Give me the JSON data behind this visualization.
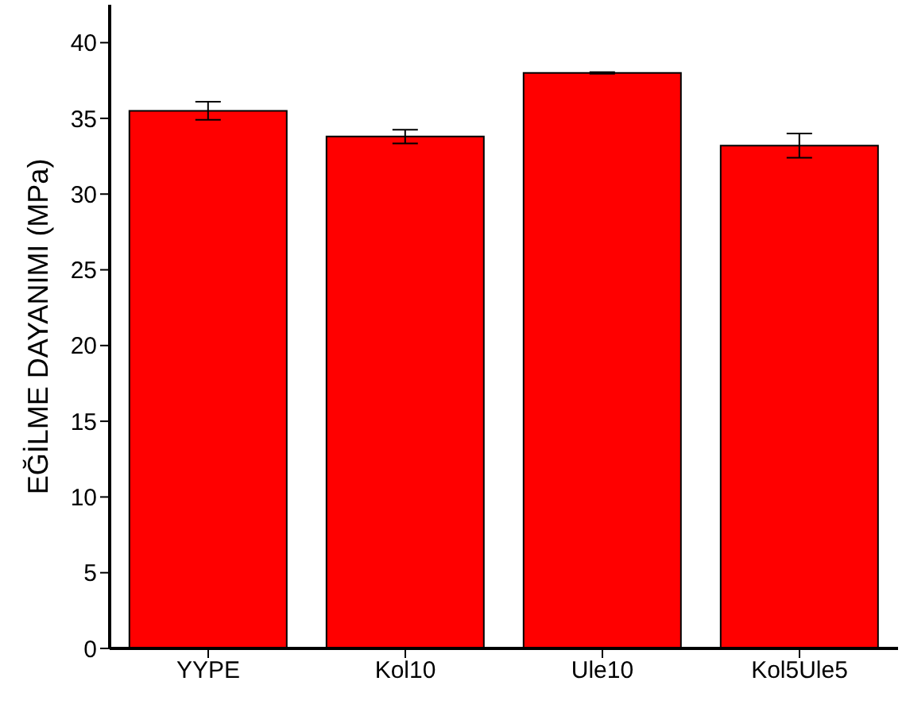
{
  "chart_data": {
    "type": "bar",
    "ylabel": "EĞİLME DAYANIMI (MPa)",
    "categories": [
      "YYPE",
      "Kol10",
      "Ule10",
      "Kol5Ule5"
    ],
    "values": [
      35.5,
      33.8,
      38,
      33.2
    ],
    "errors": [
      0.6,
      0.45,
      0.05,
      0.8
    ],
    "color": "#ff0000",
    "ylim": [
      0,
      42.5
    ],
    "yticks": [
      0,
      5,
      10,
      15,
      20,
      25,
      30,
      35,
      40
    ],
    "grid": false,
    "legend": false
  }
}
